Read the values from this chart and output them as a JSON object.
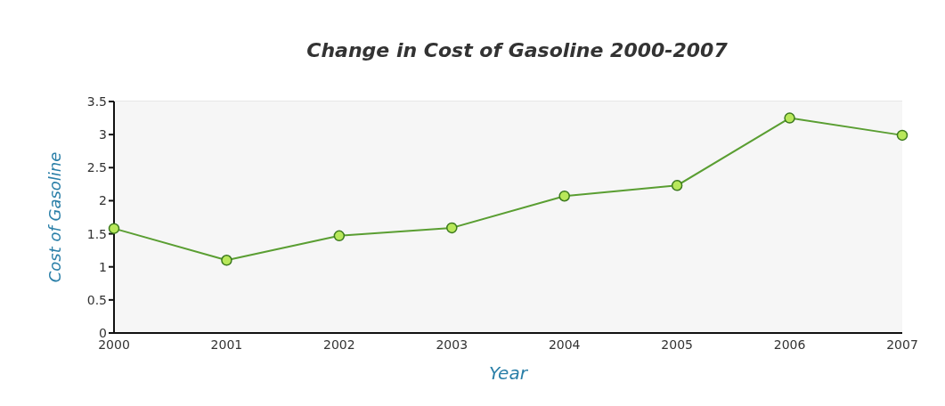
{
  "chart_data": {
    "type": "line",
    "title": "Change in Cost of Gasoline 2000-2007",
    "xlabel": "Year",
    "ylabel": "Cost of Gasoline",
    "categories": [
      "2000",
      "2001",
      "2002",
      "2003",
      "2004",
      "2005",
      "2006",
      "2007"
    ],
    "series": [
      {
        "color": "#5a9e32",
        "values": [
          1.58,
          1.1,
          1.47,
          1.59,
          2.07,
          2.23,
          3.25,
          2.99
        ]
      }
    ],
    "ylim": [
      0,
      3.5
    ],
    "yticks": [
      0,
      0.5,
      1,
      1.5,
      2,
      2.5,
      3,
      3.5
    ],
    "grid": "y",
    "marker": "circle",
    "line_style": "solid"
  }
}
